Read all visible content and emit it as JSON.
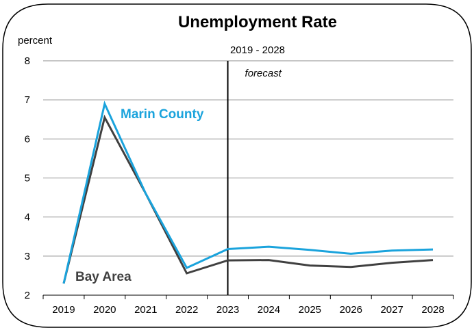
{
  "chart_data": {
    "type": "line",
    "title": "Unemployment Rate",
    "subtitle": "2019 - 2028",
    "ylabel": "percent",
    "xlabel": "",
    "ylim": [
      2,
      8
    ],
    "yticks": [
      2,
      3,
      4,
      5,
      6,
      7,
      8
    ],
    "grid": true,
    "categories": [
      "2019",
      "2020",
      "2021",
      "2022",
      "2023",
      "2024",
      "2025",
      "2026",
      "2027",
      "2028"
    ],
    "series": [
      {
        "name": "Marin County",
        "color": "#1aa3dc",
        "values": [
          2.3,
          6.9,
          4.6,
          2.7,
          3.18,
          3.24,
          3.16,
          3.06,
          3.14,
          3.17
        ]
      },
      {
        "name": "Bay Area",
        "color": "#404040",
        "values": [
          2.3,
          6.55,
          4.6,
          2.56,
          2.89,
          2.9,
          2.76,
          2.72,
          2.83,
          2.9
        ]
      }
    ],
    "annotation": {
      "text": "forecast",
      "at": "2023"
    }
  }
}
